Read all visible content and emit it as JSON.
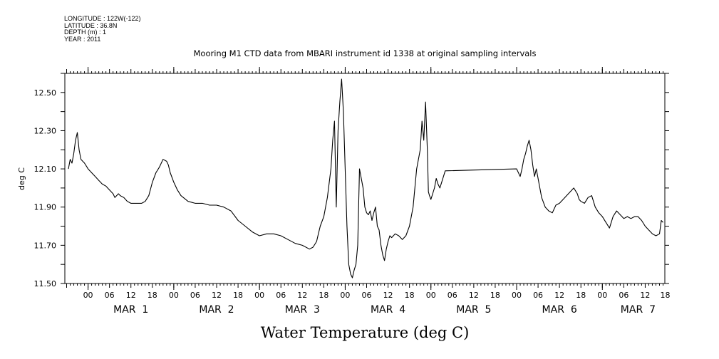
{
  "header": {
    "longitude": "LONGITUDE : 122W(-122)",
    "latitude": "LATITUDE : 36.8N",
    "depth": "DEPTH (m) : 1",
    "year": "YEAR : 2011"
  },
  "chart_data": {
    "type": "line",
    "title": "Mooring M1 CTD data from MBARI instrument id 1338 at original sampling intervals",
    "xlabel": "Water Temperature (deg C)",
    "ylabel": "deg C",
    "ylim": [
      11.5,
      12.6
    ],
    "xlim": [
      -6.5,
      161.5
    ],
    "yticks": [
      "11.50",
      "11.70",
      "11.90",
      "12.10",
      "12.30",
      "12.50"
    ],
    "ytick_values": [
      11.5,
      11.7,
      11.9,
      12.1,
      12.3,
      12.5
    ],
    "x_hour_labels": [
      "00",
      "06",
      "12",
      "18",
      "00",
      "06",
      "12",
      "18",
      "00",
      "06",
      "12",
      "18",
      "00",
      "06",
      "12",
      "18",
      "00",
      "06",
      "12",
      "18",
      "00",
      "06",
      "12",
      "18",
      "00",
      "06",
      "12",
      "18",
      "18"
    ],
    "x_hour_values": [
      0,
      6,
      12,
      18,
      24,
      30,
      36,
      42,
      48,
      54,
      60,
      66,
      72,
      78,
      84,
      90,
      96,
      102,
      108,
      114,
      120,
      126,
      132,
      138,
      144,
      150,
      156,
      162,
      162
    ],
    "day_labels": [
      {
        "text": "MAR  1",
        "center_hour": 12
      },
      {
        "text": "MAR  2",
        "center_hour": 36
      },
      {
        "text": "MAR  3",
        "center_hour": 60
      },
      {
        "text": "MAR  4",
        "center_hour": 84
      },
      {
        "text": "MAR  5",
        "center_hour": 108
      },
      {
        "text": "MAR  6",
        "center_hour": 132
      },
      {
        "text": "MAR  7",
        "center_hour": 154
      }
    ],
    "grid": false,
    "series": [
      {
        "x": [
          -5.5,
          -5.0,
          -4.5,
          -4.0,
          -3.5,
          -3.0,
          -2.5,
          -2.0,
          -1.0,
          0.0,
          1.0,
          2.0,
          3.0,
          4.0,
          5.0,
          6.0,
          7.0,
          7.5,
          8.0,
          8.5,
          9.0,
          10.0,
          11.0,
          12.0,
          13.0,
          14.0,
          15.0,
          16.0,
          17.0,
          18.0,
          19.0,
          20.0,
          21.0,
          22.0,
          22.5,
          23.0,
          24.0,
          25.0,
          26.0,
          28.0,
          30.0,
          32.0,
          34.0,
          36.0,
          38.0,
          40.0,
          42.0,
          44.0,
          46.0,
          48.0,
          50.0,
          52.0,
          54.0,
          56.0,
          58.0,
          60.0,
          62.0,
          63.0,
          64.0,
          64.5,
          65.0,
          66.0,
          67.0,
          68.0,
          68.5,
          69.0,
          69.5,
          70.0,
          70.5,
          71.0,
          71.5,
          72.0,
          72.5,
          73.0,
          73.5,
          74.0,
          74.5,
          75.0,
          75.5,
          76.0,
          76.5,
          77.0,
          77.5,
          78.0,
          78.5,
          79.0,
          79.5,
          80.0,
          80.5,
          81.0,
          81.5,
          82.0,
          82.5,
          83.0,
          83.5,
          84.0,
          84.5,
          85.0,
          86.0,
          87.0,
          88.0,
          89.0,
          90.0,
          91.0,
          92.0,
          93.0,
          93.5,
          94.0,
          94.5,
          95.0,
          95.3,
          95.6,
          96.0,
          96.5,
          97.0,
          97.5,
          98.0,
          98.5,
          99.0,
          100.0,
          120.0,
          121.0,
          121.5,
          122.0,
          122.5,
          123.0,
          123.5,
          124.0,
          124.5,
          125.0,
          125.5,
          126.0,
          127.0,
          128.0,
          129.0,
          130.0,
          131.0,
          132.0,
          133.0,
          134.0,
          135.0,
          136.0,
          137.0,
          137.5,
          138.0,
          139.0,
          140.0,
          141.0,
          142.0,
          143.0,
          144.0,
          145.0,
          146.0,
          147.0,
          148.0,
          149.0,
          150.0,
          151.0,
          152.0,
          153.0,
          154.0,
          155.0,
          156.0,
          157.0,
          158.0,
          159.0,
          160.0,
          160.5,
          161.0
        ],
        "y": [
          12.1,
          12.15,
          12.13,
          12.18,
          12.25,
          12.29,
          12.2,
          12.15,
          12.13,
          12.1,
          12.08,
          12.06,
          12.04,
          12.02,
          12.01,
          11.99,
          11.97,
          11.95,
          11.96,
          11.97,
          11.96,
          11.95,
          11.93,
          11.92,
          11.92,
          11.92,
          11.92,
          11.93,
          11.96,
          12.03,
          12.08,
          12.11,
          12.15,
          12.14,
          12.12,
          12.08,
          12.03,
          11.99,
          11.96,
          11.93,
          11.92,
          11.92,
          11.91,
          11.91,
          11.9,
          11.88,
          11.83,
          11.8,
          11.77,
          11.75,
          11.76,
          11.76,
          11.75,
          11.73,
          11.71,
          11.7,
          11.68,
          11.69,
          11.72,
          11.76,
          11.8,
          11.85,
          11.95,
          12.1,
          12.25,
          12.35,
          11.9,
          12.3,
          12.45,
          12.57,
          12.4,
          12.1,
          11.8,
          11.6,
          11.55,
          11.53,
          11.57,
          11.6,
          11.7,
          12.1,
          12.05,
          12.0,
          11.9,
          11.87,
          11.86,
          11.88,
          11.83,
          11.87,
          11.9,
          11.8,
          11.78,
          11.7,
          11.65,
          11.62,
          11.68,
          11.72,
          11.75,
          11.74,
          11.76,
          11.75,
          11.73,
          11.75,
          11.8,
          11.9,
          12.1,
          12.2,
          12.35,
          12.25,
          12.45,
          12.2,
          11.98,
          11.96,
          11.94,
          11.97,
          12.0,
          12.05,
          12.02,
          12.0,
          12.03,
          12.09,
          12.1,
          12.06,
          12.1,
          12.15,
          12.18,
          12.22,
          12.25,
          12.2,
          12.12,
          12.06,
          12.1,
          12.05,
          11.95,
          11.9,
          11.88,
          11.87,
          11.91,
          11.92,
          11.94,
          11.96,
          11.98,
          12.0,
          11.97,
          11.94,
          11.93,
          11.92,
          11.95,
          11.96,
          11.9,
          11.87,
          11.85,
          11.82,
          11.79,
          11.85,
          11.88,
          11.86,
          11.84,
          11.85,
          11.84,
          11.85,
          11.85,
          11.83,
          11.8,
          11.78,
          11.76,
          11.75,
          11.76,
          11.83,
          11.82
        ]
      }
    ]
  }
}
